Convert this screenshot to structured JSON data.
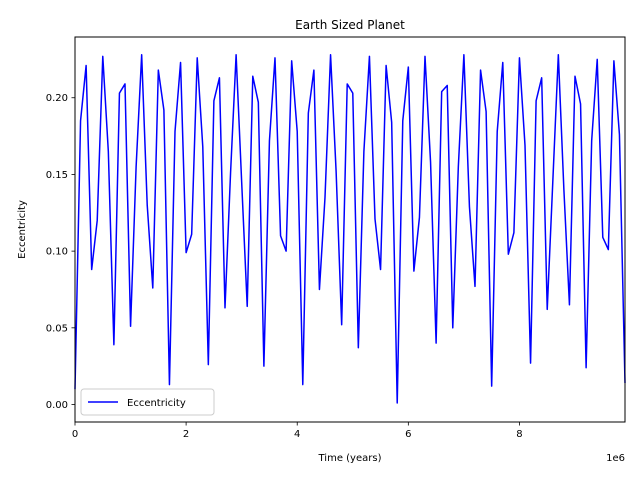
{
  "chart_data": {
    "type": "line",
    "title": "Earth Sized Planet",
    "xlabel": "Time (years)",
    "ylabel": "Eccentricity",
    "x_offset_text": "1e6",
    "xlim": [
      0,
      9900000
    ],
    "ylim": [
      -0.0114,
      0.2396
    ],
    "x_ticks": [
      0,
      2000000,
      4000000,
      6000000,
      8000000
    ],
    "x_tick_labels": [
      "0",
      "2",
      "4",
      "6",
      "8"
    ],
    "y_ticks": [
      0.0,
      0.05,
      0.1,
      0.15,
      0.2
    ],
    "y_tick_labels": [
      "0.00",
      "0.05",
      "0.10",
      "0.15",
      "0.20"
    ],
    "grid": false,
    "legend_position": "lower-left",
    "series": [
      {
        "name": "Eccentricity",
        "color": "#0000ff",
        "x": [
          0,
          100000,
          200000,
          300000,
          400000,
          500000,
          600000,
          700000,
          800000,
          900000,
          1000000,
          1100000,
          1200000,
          1300000,
          1400000,
          1500000,
          1600000,
          1700000,
          1800000,
          1900000,
          2000000,
          2100000,
          2200000,
          2300000,
          2400000,
          2500000,
          2600000,
          2700000,
          2800000,
          2900000,
          3000000,
          3100000,
          3200000,
          3300000,
          3400000,
          3500000,
          3600000,
          3700000,
          3800000,
          3900000,
          4000000,
          4100000,
          4200000,
          4300000,
          4400000,
          4500000,
          4600000,
          4700000,
          4800000,
          4900000,
          5000000,
          5100000,
          5200000,
          5300000,
          5400000,
          5500000,
          5600000,
          5700000,
          5800000,
          5900000,
          6000000,
          6100000,
          6200000,
          6300000,
          6400000,
          6500000,
          6600000,
          6700000,
          6800000,
          6900000,
          7000000,
          7100000,
          7200000,
          7300000,
          7400000,
          7500000,
          7600000,
          7700000,
          7800000,
          7900000,
          8000000,
          8100000,
          8200000,
          8300000,
          8400000,
          8500000,
          8600000,
          8700000,
          8800000,
          8900000,
          9000000,
          9100000,
          9200000,
          9300000,
          9400000,
          9500000,
          9600000,
          9700000,
          9800000,
          9900000
        ],
        "values": [
          0.01,
          0.185,
          0.221,
          0.088,
          0.12,
          0.227,
          0.165,
          0.039,
          0.203,
          0.209,
          0.051,
          0.155,
          0.228,
          0.13,
          0.076,
          0.218,
          0.192,
          0.013,
          0.178,
          0.223,
          0.099,
          0.111,
          0.226,
          0.168,
          0.026,
          0.198,
          0.213,
          0.063,
          0.151,
          0.228,
          0.145,
          0.064,
          0.214,
          0.197,
          0.025,
          0.172,
          0.226,
          0.11,
          0.1,
          0.224,
          0.178,
          0.013,
          0.19,
          0.218,
          0.075,
          0.135,
          0.228,
          0.152,
          0.052,
          0.209,
          0.203,
          0.037,
          0.165,
          0.227,
          0.121,
          0.088,
          0.221,
          0.184,
          0.001,
          0.185,
          0.22,
          0.087,
          0.122,
          0.227,
          0.158,
          0.04,
          0.204,
          0.208,
          0.05,
          0.155,
          0.228,
          0.129,
          0.077,
          0.218,
          0.191,
          0.012,
          0.178,
          0.223,
          0.098,
          0.112,
          0.226,
          0.169,
          0.027,
          0.198,
          0.213,
          0.062,
          0.145,
          0.228,
          0.14,
          0.065,
          0.214,
          0.196,
          0.024,
          0.172,
          0.225,
          0.109,
          0.101,
          0.224,
          0.176,
          0.014
        ]
      }
    ]
  }
}
